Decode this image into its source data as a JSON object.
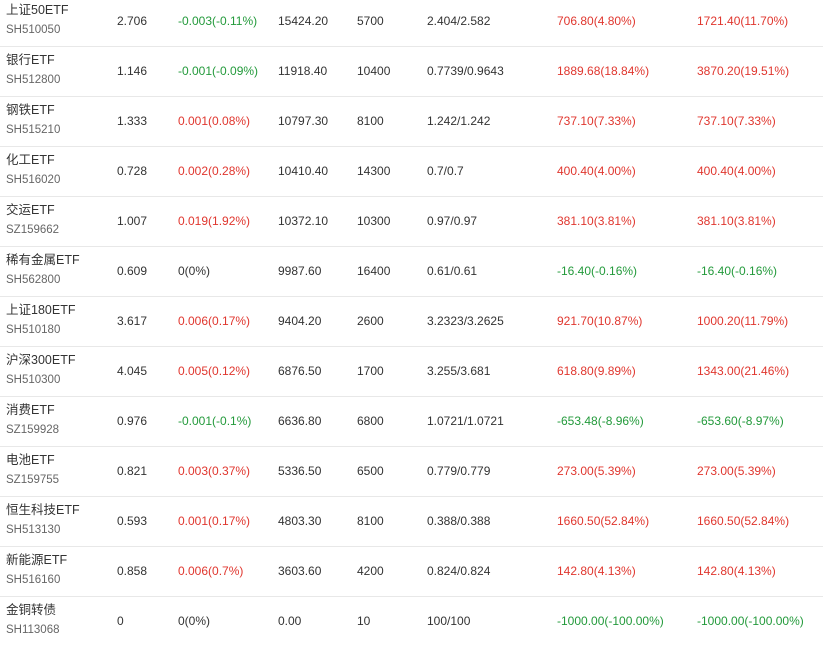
{
  "colors": {
    "up": "#e0362e",
    "down": "#239a3b",
    "flat": "#333333"
  },
  "rows": [
    {
      "name": "上证50ETF",
      "code": "SH510050",
      "price": "2.706",
      "change": "-0.003(-0.11%)",
      "change_dir": "down",
      "market_value": "15424.20",
      "quantity": "5700",
      "cost": "2.404/2.582",
      "pnl1": "706.80(4.80%)",
      "pnl1_dir": "up",
      "pnl2": "1721.40(11.70%)",
      "pnl2_dir": "up"
    },
    {
      "name": "银行ETF",
      "code": "SH512800",
      "price": "1.146",
      "change": "-0.001(-0.09%)",
      "change_dir": "down",
      "market_value": "11918.40",
      "quantity": "10400",
      "cost": "0.7739/0.9643",
      "pnl1": "1889.68(18.84%)",
      "pnl1_dir": "up",
      "pnl2": "3870.20(19.51%)",
      "pnl2_dir": "up"
    },
    {
      "name": "钢铁ETF",
      "code": "SH515210",
      "price": "1.333",
      "change": "0.001(0.08%)",
      "change_dir": "up",
      "market_value": "10797.30",
      "quantity": "8100",
      "cost": "1.242/1.242",
      "pnl1": "737.10(7.33%)",
      "pnl1_dir": "up",
      "pnl2": "737.10(7.33%)",
      "pnl2_dir": "up"
    },
    {
      "name": "化工ETF",
      "code": "SH516020",
      "price": "0.728",
      "change": "0.002(0.28%)",
      "change_dir": "up",
      "market_value": "10410.40",
      "quantity": "14300",
      "cost": "0.7/0.7",
      "pnl1": "400.40(4.00%)",
      "pnl1_dir": "up",
      "pnl2": "400.40(4.00%)",
      "pnl2_dir": "up"
    },
    {
      "name": "交运ETF",
      "code": "SZ159662",
      "price": "1.007",
      "change": "0.019(1.92%)",
      "change_dir": "up",
      "market_value": "10372.10",
      "quantity": "10300",
      "cost": "0.97/0.97",
      "pnl1": "381.10(3.81%)",
      "pnl1_dir": "up",
      "pnl2": "381.10(3.81%)",
      "pnl2_dir": "up"
    },
    {
      "name": "稀有金属ETF",
      "code": "SH562800",
      "price": "0.609",
      "change": "0(0%)",
      "change_dir": "flat",
      "market_value": "9987.60",
      "quantity": "16400",
      "cost": "0.61/0.61",
      "pnl1": "-16.40(-0.16%)",
      "pnl1_dir": "down",
      "pnl2": "-16.40(-0.16%)",
      "pnl2_dir": "down"
    },
    {
      "name": "上证180ETF",
      "code": "SH510180",
      "price": "3.617",
      "change": "0.006(0.17%)",
      "change_dir": "up",
      "market_value": "9404.20",
      "quantity": "2600",
      "cost": "3.2323/3.2625",
      "pnl1": "921.70(10.87%)",
      "pnl1_dir": "up",
      "pnl2": "1000.20(11.79%)",
      "pnl2_dir": "up"
    },
    {
      "name": "沪深300ETF",
      "code": "SH510300",
      "price": "4.045",
      "change": "0.005(0.12%)",
      "change_dir": "up",
      "market_value": "6876.50",
      "quantity": "1700",
      "cost": "3.255/3.681",
      "pnl1": "618.80(9.89%)",
      "pnl1_dir": "up",
      "pnl2": "1343.00(21.46%)",
      "pnl2_dir": "up"
    },
    {
      "name": "消费ETF",
      "code": "SZ159928",
      "price": "0.976",
      "change": "-0.001(-0.1%)",
      "change_dir": "down",
      "market_value": "6636.80",
      "quantity": "6800",
      "cost": "1.0721/1.0721",
      "pnl1": "-653.48(-8.96%)",
      "pnl1_dir": "down",
      "pnl2": "-653.60(-8.97%)",
      "pnl2_dir": "down"
    },
    {
      "name": "电池ETF",
      "code": "SZ159755",
      "price": "0.821",
      "change": "0.003(0.37%)",
      "change_dir": "up",
      "market_value": "5336.50",
      "quantity": "6500",
      "cost": "0.779/0.779",
      "pnl1": "273.00(5.39%)",
      "pnl1_dir": "up",
      "pnl2": "273.00(5.39%)",
      "pnl2_dir": "up"
    },
    {
      "name": "恒生科技ETF",
      "code": "SH513130",
      "price": "0.593",
      "change": "0.001(0.17%)",
      "change_dir": "up",
      "market_value": "4803.30",
      "quantity": "8100",
      "cost": "0.388/0.388",
      "pnl1": "1660.50(52.84%)",
      "pnl1_dir": "up",
      "pnl2": "1660.50(52.84%)",
      "pnl2_dir": "up"
    },
    {
      "name": "新能源ETF",
      "code": "SH516160",
      "price": "0.858",
      "change": "0.006(0.7%)",
      "change_dir": "up",
      "market_value": "3603.60",
      "quantity": "4200",
      "cost": "0.824/0.824",
      "pnl1": "142.80(4.13%)",
      "pnl1_dir": "up",
      "pnl2": "142.80(4.13%)",
      "pnl2_dir": "up"
    },
    {
      "name": "金铜转债",
      "code": "SH113068",
      "price": "0",
      "change": "0(0%)",
      "change_dir": "flat",
      "market_value": "0.00",
      "quantity": "10",
      "cost": "100/100",
      "pnl1": "-1000.00(-100.00%)",
      "pnl1_dir": "down",
      "pnl2": "-1000.00(-100.00%)",
      "pnl2_dir": "down"
    }
  ]
}
